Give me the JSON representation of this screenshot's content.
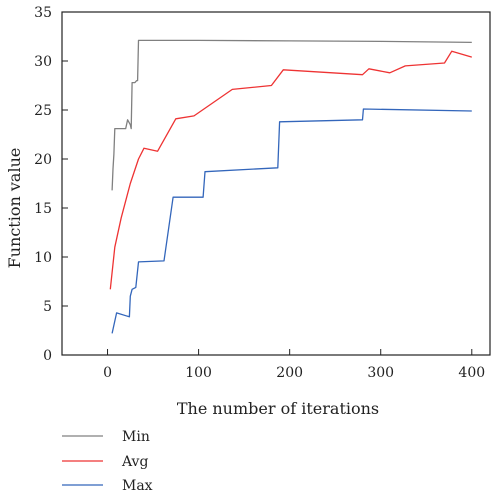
{
  "chart_data": {
    "type": "line",
    "title": "",
    "xlabel": "The number of iterations",
    "ylabel": "Function value",
    "xlim": [
      -50,
      420
    ],
    "ylim": [
      0,
      35
    ],
    "xticks": [
      0,
      100,
      200,
      300,
      400
    ],
    "yticks": [
      0,
      5,
      10,
      15,
      20,
      25,
      30,
      35
    ],
    "grid": false,
    "legend_position": "bottom-left, below plot",
    "series": [
      {
        "name": "Min",
        "color": "#808080",
        "points": [
          [
            5,
            16.8
          ],
          [
            6,
            19
          ],
          [
            7,
            20.5
          ],
          [
            8,
            23.1
          ],
          [
            10,
            23.1
          ],
          [
            20,
            23.1
          ],
          [
            22,
            24
          ],
          [
            25,
            23.5
          ],
          [
            26,
            23.1
          ],
          [
            27,
            27.8
          ],
          [
            30,
            27.8
          ],
          [
            32,
            28
          ],
          [
            33,
            28
          ],
          [
            34,
            32.1
          ],
          [
            100,
            32.1
          ],
          [
            200,
            32.05
          ],
          [
            300,
            32
          ],
          [
            400,
            31.9
          ]
        ]
      },
      {
        "name": "Avg",
        "color": "#ee3333",
        "points": [
          [
            3,
            6.7
          ],
          [
            8,
            11
          ],
          [
            15,
            14
          ],
          [
            25,
            17.5
          ],
          [
            34,
            20
          ],
          [
            40,
            21.1
          ],
          [
            55,
            20.8
          ],
          [
            75,
            24.1
          ],
          [
            95,
            24.4
          ],
          [
            137,
            27.1
          ],
          [
            180,
            27.5
          ],
          [
            193,
            29.1
          ],
          [
            280,
            28.6
          ],
          [
            287,
            29.2
          ],
          [
            310,
            28.8
          ],
          [
            327,
            29.5
          ],
          [
            370,
            29.8
          ],
          [
            378,
            31
          ],
          [
            400,
            30.4
          ]
        ]
      },
      {
        "name": "Max",
        "color": "#3366bb",
        "points": [
          [
            5,
            2.2
          ],
          [
            10,
            4.3
          ],
          [
            24,
            3.9
          ],
          [
            25,
            6
          ],
          [
            27,
            6.7
          ],
          [
            31,
            6.9
          ],
          [
            34,
            9.5
          ],
          [
            62,
            9.6
          ],
          [
            72,
            16.1
          ],
          [
            105,
            16.1
          ],
          [
            107,
            18.7
          ],
          [
            187,
            19.1
          ],
          [
            189,
            23.8
          ],
          [
            280,
            24
          ],
          [
            281,
            25.1
          ],
          [
            400,
            24.9
          ]
        ]
      }
    ]
  }
}
